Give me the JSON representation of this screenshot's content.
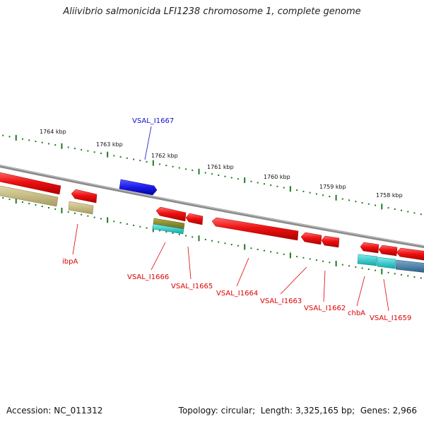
{
  "title": "Aliivibrio salmonicida LFI1238 chromosome 1, complete genome",
  "footer": {
    "accession_label": "Accession:",
    "accession": "NC_011312",
    "topology_label": "Topology:",
    "topology": "circular",
    "length_label": "Length:",
    "length": "3,325,165 bp",
    "genes_label": "Genes:",
    "genes": "2,966"
  },
  "scale_labels": [
    "1764 kbp",
    "1763 kbp",
    "1762 kbp",
    "1761 kbp",
    "1760 kbp",
    "1759 kbp",
    "1758 kbp"
  ],
  "gene_labels": [
    {
      "text": "VSAL_I1667",
      "strand": "forward",
      "color": "#1010cc"
    },
    {
      "text": "ibpA",
      "strand": "reverse",
      "color": "#dd0000"
    },
    {
      "text": "VSAL_I1666",
      "strand": "reverse",
      "color": "#dd0000"
    },
    {
      "text": "VSAL_I1665",
      "strand": "reverse",
      "color": "#dd0000"
    },
    {
      "text": "VSAL_I1664",
      "strand": "reverse",
      "color": "#dd0000"
    },
    {
      "text": "VSAL_I1663",
      "strand": "reverse",
      "color": "#dd0000"
    },
    {
      "text": "VSAL_I1662",
      "strand": "reverse",
      "color": "#dd0000"
    },
    {
      "text": "chbA",
      "strand": "reverse",
      "color": "#dd0000"
    },
    {
      "text": "VSAL_I1659",
      "strand": "reverse",
      "color": "#dd0000"
    }
  ],
  "colors": {
    "forward_gene": "#1a1ae6",
    "reverse_gene": "#ee1111",
    "cog_khaki": "#c8bd85",
    "cog_olive": "#8a8a2a",
    "cog_cyan": "#22cccc",
    "cog_steel": "#4a7fa8",
    "backbone": "#8a8a8a",
    "tick": "#1f7a1f"
  }
}
